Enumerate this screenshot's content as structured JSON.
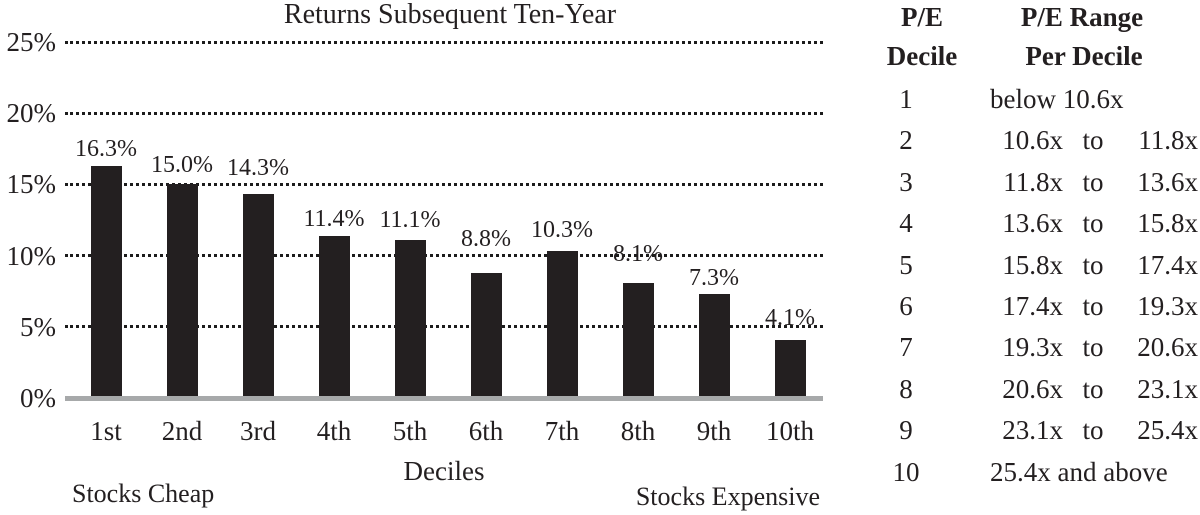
{
  "chart_data": {
    "type": "bar",
    "title": "Returns Subsequent Ten-Year",
    "xlabel": "Deciles",
    "ylabel": "",
    "note_left": "Stocks Cheap",
    "note_right": "Stocks Expensive",
    "categories": [
      "1st",
      "2nd",
      "3rd",
      "4th",
      "5th",
      "6th",
      "7th",
      "8th",
      "9th",
      "10th"
    ],
    "values": [
      16.3,
      15.0,
      14.3,
      11.4,
      11.1,
      8.8,
      10.3,
      8.1,
      7.3,
      4.1
    ],
    "bar_labels": [
      "16.3%",
      "15.0%",
      "14.3%",
      "11.4%",
      "11.1%",
      "8.8%",
      "10.3%",
      "8.1%",
      "7.3%",
      "4.1%"
    ],
    "y_ticks": [
      "25%",
      "20%",
      "15%",
      "10%",
      "5%",
      "0%"
    ],
    "y_tick_values": [
      25,
      20,
      15,
      10,
      5,
      0
    ],
    "ylim": [
      0,
      25
    ],
    "grid": "horizontal-dotted",
    "legend": "none",
    "bar_color": "#231f20",
    "baseline_color": "#a7a9aa",
    "text_color": "#231f20"
  },
  "table": {
    "header": {
      "col1_line1": "P/E",
      "col1_line2": "Decile",
      "col2_line1": "P/E Range",
      "col2_line2": "Per Decile"
    },
    "to_label": "to",
    "rows": [
      {
        "decile": "1",
        "text": "below 10.6x"
      },
      {
        "decile": "2",
        "low": "10.6x",
        "high": "11.8x"
      },
      {
        "decile": "3",
        "low": "11.8x",
        "high": "13.6x"
      },
      {
        "decile": "4",
        "low": "13.6x",
        "high": "15.8x"
      },
      {
        "decile": "5",
        "low": "15.8x",
        "high": "17.4x"
      },
      {
        "decile": "6",
        "low": "17.4x",
        "high": "19.3x"
      },
      {
        "decile": "7",
        "low": "19.3x",
        "high": "20.6x"
      },
      {
        "decile": "8",
        "low": "20.6x",
        "high": "23.1x"
      },
      {
        "decile": "9",
        "low": "23.1x",
        "high": "25.4x"
      },
      {
        "decile": "10",
        "text": "25.4x and above"
      }
    ]
  }
}
